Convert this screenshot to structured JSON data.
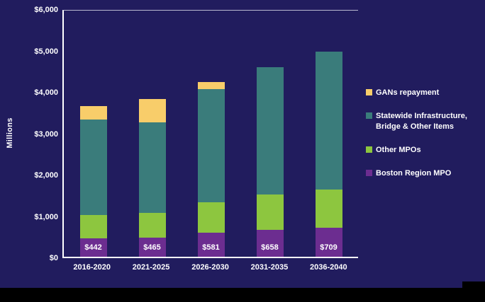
{
  "chart_data": {
    "type": "bar",
    "stacked": true,
    "ylabel": "Millions",
    "ylim": [
      0,
      6000
    ],
    "grid": false,
    "legend_position": "right",
    "y_ticks": [
      "$0",
      "$1,000",
      "$2,000",
      "$3,000",
      "$4,000",
      "$5,000",
      "$6,000"
    ],
    "categories": [
      "2016-2020",
      "2021-2025",
      "2026-2030",
      "2031-2035",
      "2036-2040"
    ],
    "series": [
      {
        "key": "boston-region-mpo",
        "name": "Boston Region MPO",
        "color": "#6C2D90",
        "values": [
          442,
          465,
          581,
          658,
          709
        ]
      },
      {
        "key": "other-mpos",
        "name": "Other MPOs",
        "color": "#8DC63F",
        "values": [
          580,
          605,
          750,
          860,
          930
        ]
      },
      {
        "key": "statewide-infrastructure",
        "name": "Statewide Infrastructure, Bridge & Other Items",
        "color": "#3A7C7B",
        "values": [
          2330,
          2210,
          2760,
          3100,
          3360
        ]
      },
      {
        "key": "gans-repayment",
        "name": "GANs repayment",
        "color": "#F8CD6A",
        "values": [
          330,
          570,
          160,
          0,
          0
        ]
      }
    ],
    "data_labels": [
      "$442",
      "$465",
      "$581",
      "$658",
      "$709"
    ]
  },
  "legend": {
    "items": [
      {
        "label": "GANs repayment",
        "color": "#F8CD6A"
      },
      {
        "label": "Statewide Infrastructure, Bridge & Other Items",
        "color": "#3A7C7B"
      },
      {
        "label": "Other MPOs",
        "color": "#8DC63F"
      },
      {
        "label": "Boston Region MPO",
        "color": "#6C2D90"
      }
    ]
  }
}
